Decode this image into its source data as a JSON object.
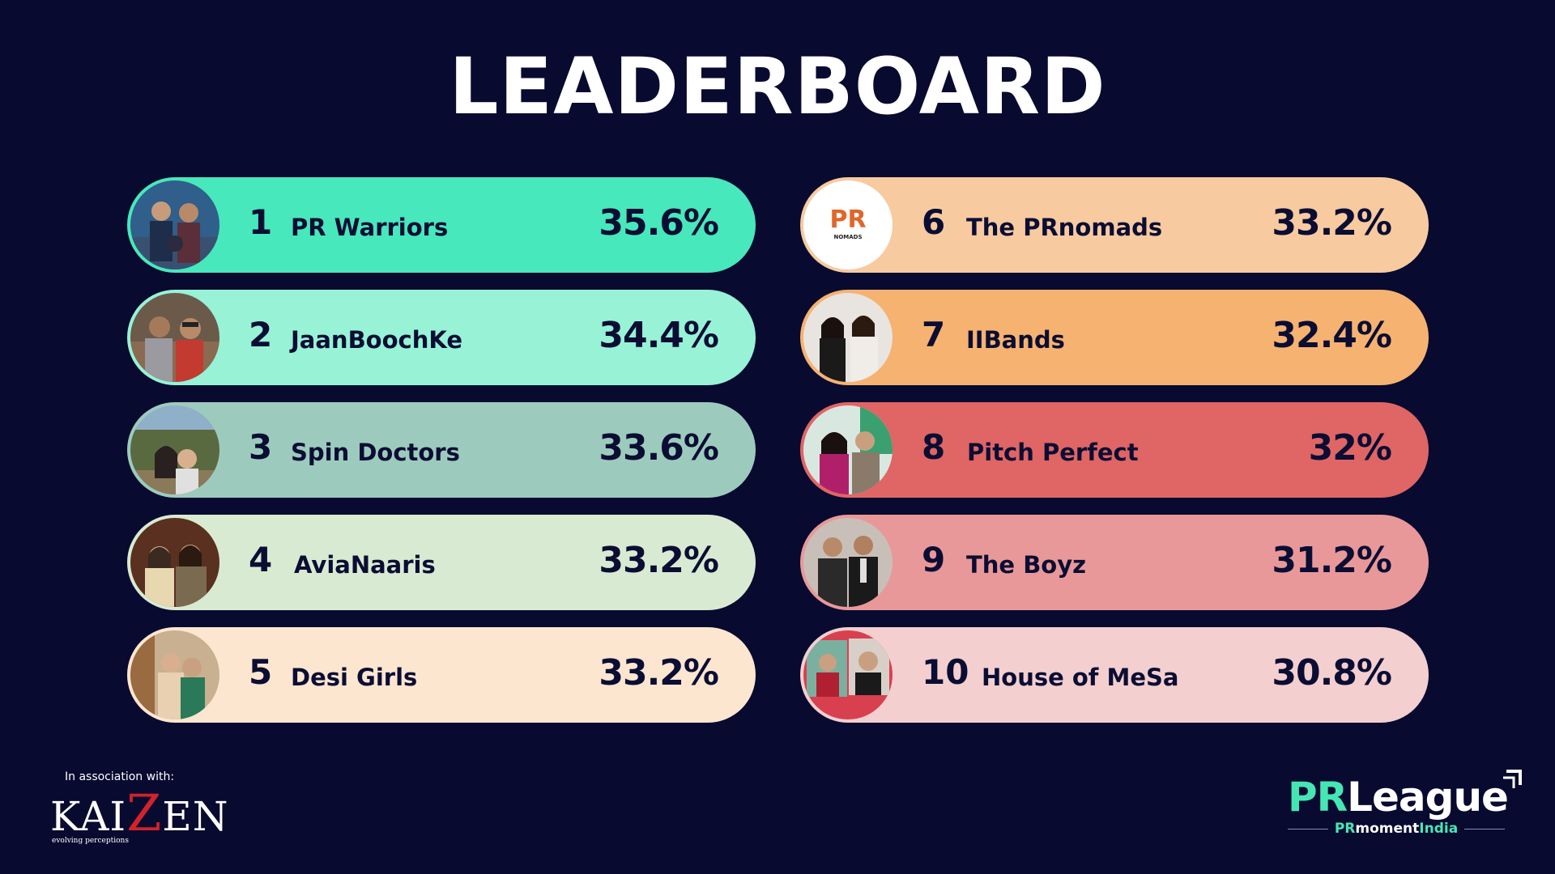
{
  "title": "LEADERBOARD",
  "entries": [
    {
      "rank": "1",
      "team": "PR Warriors",
      "score": "35.6%",
      "color": "#47e8bb"
    },
    {
      "rank": "2",
      "team": "JaanBoochKe",
      "score": "34.4%",
      "color": "#97f2d6"
    },
    {
      "rank": "3",
      "team": "Spin Doctors",
      "score": "33.6%",
      "color": "#9ccbbd"
    },
    {
      "rank": "4",
      "team": "AviaNaaris",
      "score": "33.2%",
      "color": "#d8ebd2"
    },
    {
      "rank": "5",
      "team": "Desi Girls",
      "score": "33.2%",
      "color": "#fce6d0"
    },
    {
      "rank": "6",
      "team": "The PRnomads",
      "score": "33.2%",
      "color": "#f7caa0"
    },
    {
      "rank": "7",
      "team": "IIBands",
      "score": "32.4%",
      "color": "#f6b270"
    },
    {
      "rank": "8",
      "team": "Pitch Perfect",
      "score": "32%",
      "color": "#e06565"
    },
    {
      "rank": "9",
      "team": "The Boyz",
      "score": "31.2%",
      "color": "#e99899"
    },
    {
      "rank": "10",
      "team": "House of MeSa",
      "score": "30.8%",
      "color": "#f3cfd0"
    }
  ],
  "footer": {
    "association_label": "In association with:",
    "kaizen_pre": "KAI",
    "kaizen_z": "Z",
    "kaizen_post": "EN",
    "kaizen_tagline": "evolving perceptions",
    "prleague_pr": "PR",
    "prleague_league": "League",
    "prmoment_pr": "PR",
    "prmoment_moment": "moment",
    "prmoment_india": "India"
  },
  "colors": {
    "background": "#080a30",
    "brand_green": "#46e6b4",
    "kaizen_red": "#d3222a"
  }
}
